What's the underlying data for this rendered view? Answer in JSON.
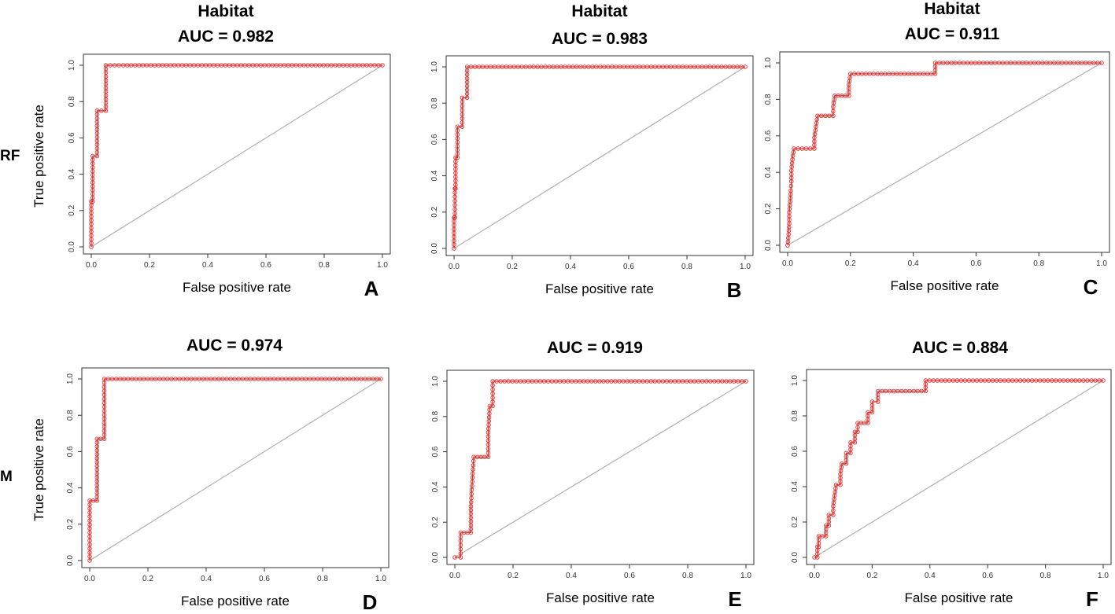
{
  "figure": {
    "row_labels": [
      "RF",
      "M"
    ],
    "curve_color": "#e0302f",
    "diagonal_color": "#b0b0b0"
  },
  "chart_data": [
    {
      "type": "line",
      "panel": "A",
      "row": "RF",
      "title": "Habitat",
      "subtitle": "AUC = 0.982",
      "xlabel": "False positive rate",
      "ylabel": "True positive rate",
      "show_ylabel": true,
      "xlim": [
        0,
        1
      ],
      "ylim": [
        0,
        1
      ],
      "xticks": [
        "0.0",
        "0.2",
        "0.4",
        "0.6",
        "0.8",
        "1.0"
      ],
      "yticks": [
        "0.0",
        "0.2",
        "0.4",
        "0.6",
        "0.8",
        "1.0"
      ],
      "series": [
        {
          "name": "ROC",
          "points": [
            [
              0,
              0
            ],
            [
              0,
              0.25
            ],
            [
              0.005,
              0.25
            ],
            [
              0.005,
              0.5
            ],
            [
              0.02,
              0.5
            ],
            [
              0.02,
              0.75
            ],
            [
              0.05,
              0.75
            ],
            [
              0.05,
              1.0
            ],
            [
              0.11,
              1.0
            ],
            [
              1.0,
              1.0
            ]
          ]
        }
      ],
      "reference_line": [
        [
          0,
          0
        ],
        [
          1,
          1
        ]
      ]
    },
    {
      "type": "line",
      "panel": "B",
      "row": "RF",
      "title": "Habitat",
      "subtitle": "AUC = 0.983",
      "xlabel": "False positive rate",
      "ylabel": "True positive rate",
      "show_ylabel": false,
      "xlim": [
        0,
        1
      ],
      "ylim": [
        0,
        1
      ],
      "xticks": [
        "0.0",
        "0.2",
        "0.4",
        "0.6",
        "0.8",
        "1.0"
      ],
      "yticks": [
        "0.0",
        "0.2",
        "0.4",
        "0.6",
        "0.8",
        "1.0"
      ],
      "series": [
        {
          "name": "ROC",
          "points": [
            [
              0,
              0
            ],
            [
              0,
              0.17
            ],
            [
              0.003,
              0.17
            ],
            [
              0.003,
              0.33
            ],
            [
              0.005,
              0.33
            ],
            [
              0.005,
              0.5
            ],
            [
              0.012,
              0.5
            ],
            [
              0.012,
              0.67
            ],
            [
              0.028,
              0.67
            ],
            [
              0.028,
              0.83
            ],
            [
              0.045,
              0.83
            ],
            [
              0.045,
              1.0
            ],
            [
              0.26,
              1.0
            ],
            [
              1.0,
              1.0
            ]
          ]
        }
      ],
      "reference_line": [
        [
          0,
          0
        ],
        [
          1,
          1
        ]
      ]
    },
    {
      "type": "line",
      "panel": "C",
      "row": "RF",
      "title": "Habitat",
      "subtitle": "AUC = 0.911",
      "xlabel": "False positive rate",
      "ylabel": "True positive rate",
      "show_ylabel": false,
      "xlim": [
        0,
        1
      ],
      "ylim": [
        0,
        1
      ],
      "xticks": [
        "0.0",
        "0.2",
        "0.4",
        "0.6",
        "0.8",
        "1.0"
      ],
      "yticks": [
        "0.0",
        "0.2",
        "0.4",
        "0.6",
        "0.8",
        "1.0"
      ],
      "series": [
        {
          "name": "ROC",
          "points": [
            [
              0,
              0
            ],
            [
              0.003,
              0.06
            ],
            [
              0.005,
              0.12
            ],
            [
              0.005,
              0.18
            ],
            [
              0.008,
              0.24
            ],
            [
              0.01,
              0.3
            ],
            [
              0.012,
              0.35
            ],
            [
              0.012,
              0.41
            ],
            [
              0.015,
              0.47
            ],
            [
              0.02,
              0.53
            ],
            [
              0.085,
              0.53
            ],
            [
              0.085,
              0.59
            ],
            [
              0.09,
              0.65
            ],
            [
              0.095,
              0.71
            ],
            [
              0.145,
              0.71
            ],
            [
              0.145,
              0.76
            ],
            [
              0.15,
              0.82
            ],
            [
              0.195,
              0.82
            ],
            [
              0.195,
              0.88
            ],
            [
              0.2,
              0.94
            ],
            [
              0.47,
              0.94
            ],
            [
              0.47,
              1.0
            ],
            [
              0.56,
              1.0
            ],
            [
              1.0,
              1.0
            ]
          ]
        }
      ],
      "reference_line": [
        [
          0,
          0
        ],
        [
          1,
          1
        ]
      ]
    },
    {
      "type": "line",
      "panel": "D",
      "row": "M",
      "title": "",
      "subtitle": "AUC = 0.974",
      "xlabel": "False positive rate",
      "ylabel": "True positive rate",
      "show_ylabel": true,
      "xlim": [
        0,
        1
      ],
      "ylim": [
        0,
        1
      ],
      "xticks": [
        "0.0",
        "0.2",
        "0.4",
        "0.6",
        "0.8",
        "1.0"
      ],
      "yticks": [
        "0.0",
        "0.2",
        "0.4",
        "0.6",
        "0.8",
        "1.0"
      ],
      "series": [
        {
          "name": "ROC",
          "points": [
            [
              0,
              0
            ],
            [
              0,
              0.33
            ],
            [
              0.025,
              0.33
            ],
            [
              0.025,
              0.67
            ],
            [
              0.05,
              0.67
            ],
            [
              0.05,
              1.0
            ],
            [
              1.0,
              1.0
            ]
          ]
        }
      ],
      "reference_line": [
        [
          0,
          0
        ],
        [
          1,
          1
        ]
      ]
    },
    {
      "type": "line",
      "panel": "E",
      "row": "M",
      "title": "",
      "subtitle": "AUC = 0.919",
      "xlabel": "False positive rate",
      "ylabel": "True positive rate",
      "show_ylabel": false,
      "xlim": [
        0,
        1
      ],
      "ylim": [
        0,
        1
      ],
      "xticks": [
        "0.0",
        "0.2",
        "0.4",
        "0.6",
        "0.8",
        "1.0"
      ],
      "yticks": [
        "0.0",
        "0.2",
        "0.4",
        "0.6",
        "0.8",
        "1.0"
      ],
      "series": [
        {
          "name": "ROC",
          "points": [
            [
              0,
              0
            ],
            [
              0.02,
              0
            ],
            [
              0.02,
              0.14
            ],
            [
              0.055,
              0.14
            ],
            [
              0.055,
              0.29
            ],
            [
              0.06,
              0.43
            ],
            [
              0.065,
              0.57
            ],
            [
              0.115,
              0.57
            ],
            [
              0.115,
              0.71
            ],
            [
              0.12,
              0.86
            ],
            [
              0.13,
              0.86
            ],
            [
              0.13,
              1.0
            ],
            [
              1.0,
              1.0
            ]
          ]
        }
      ],
      "reference_line": [
        [
          0,
          0
        ],
        [
          1,
          1
        ]
      ]
    },
    {
      "type": "line",
      "panel": "F",
      "row": "M",
      "title": "",
      "subtitle": "AUC = 0.884",
      "xlabel": "False positive rate",
      "ylabel": "True positive rate",
      "show_ylabel": false,
      "xlim": [
        0,
        1
      ],
      "ylim": [
        0,
        1
      ],
      "xticks": [
        "0.0",
        "0.2",
        "0.4",
        "0.6",
        "0.8",
        "1.0"
      ],
      "yticks": [
        "0.0",
        "0.2",
        "0.4",
        "0.6",
        "0.8",
        "1.0"
      ],
      "series": [
        {
          "name": "ROC",
          "points": [
            [
              0,
              0
            ],
            [
              0.01,
              0
            ],
            [
              0.01,
              0.06
            ],
            [
              0.015,
              0.06
            ],
            [
              0.015,
              0.12
            ],
            [
              0.04,
              0.12
            ],
            [
              0.04,
              0.18
            ],
            [
              0.05,
              0.18
            ],
            [
              0.05,
              0.24
            ],
            [
              0.065,
              0.24
            ],
            [
              0.065,
              0.29
            ],
            [
              0.07,
              0.35
            ],
            [
              0.075,
              0.41
            ],
            [
              0.09,
              0.41
            ],
            [
              0.09,
              0.47
            ],
            [
              0.095,
              0.53
            ],
            [
              0.11,
              0.53
            ],
            [
              0.11,
              0.59
            ],
            [
              0.125,
              0.59
            ],
            [
              0.125,
              0.65
            ],
            [
              0.14,
              0.65
            ],
            [
              0.14,
              0.71
            ],
            [
              0.15,
              0.71
            ],
            [
              0.15,
              0.76
            ],
            [
              0.185,
              0.76
            ],
            [
              0.185,
              0.82
            ],
            [
              0.2,
              0.82
            ],
            [
              0.2,
              0.88
            ],
            [
              0.22,
              0.88
            ],
            [
              0.22,
              0.94
            ],
            [
              0.385,
              0.94
            ],
            [
              0.385,
              1.0
            ],
            [
              1.0,
              1.0
            ]
          ]
        }
      ],
      "reference_line": [
        [
          0,
          0
        ],
        [
          1,
          1
        ]
      ]
    }
  ]
}
